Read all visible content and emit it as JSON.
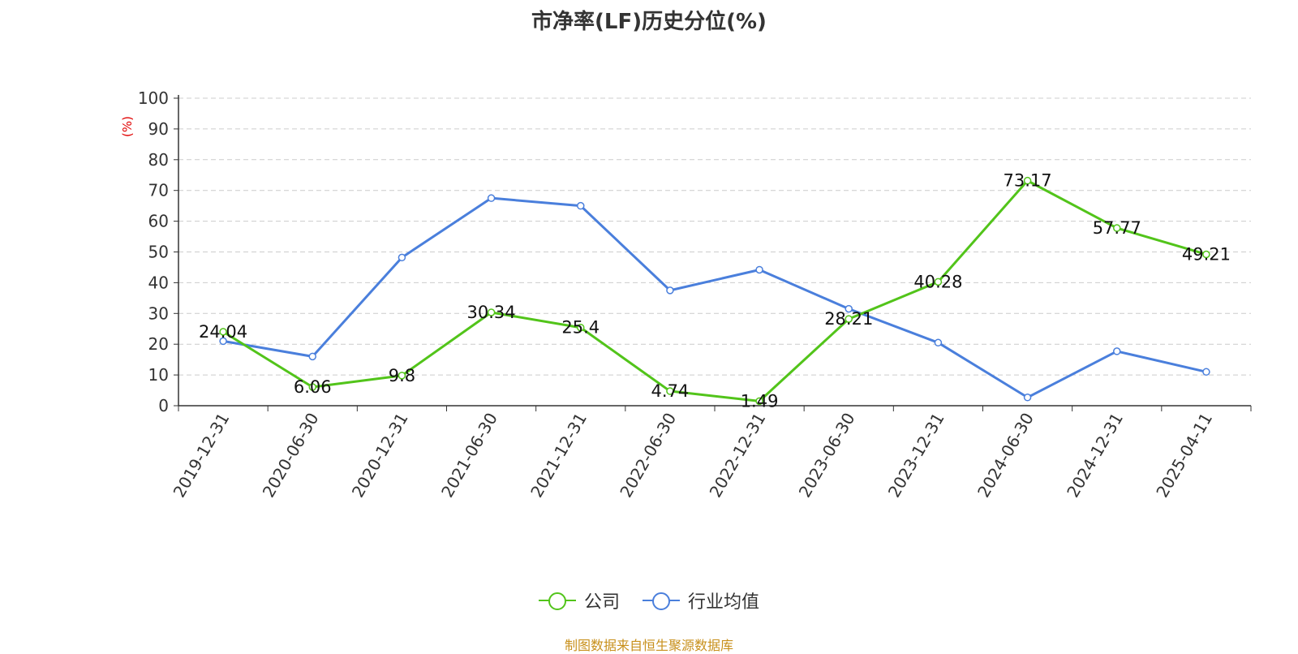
{
  "chart_data": {
    "type": "line",
    "title": "市净率(LF)历史分位(%)",
    "ylabel": "(%)",
    "ylim": [
      0,
      100
    ],
    "yticks": [
      0,
      10,
      20,
      30,
      40,
      50,
      60,
      70,
      80,
      90,
      100
    ],
    "grid": true,
    "legend_position": "bottom",
    "categories": [
      "2019-12-31",
      "2020-06-30",
      "2020-12-31",
      "2021-06-30",
      "2021-12-31",
      "2022-06-30",
      "2022-12-31",
      "2023-06-30",
      "2023-12-31",
      "2024-06-30",
      "2024-12-31",
      "2025-04-11"
    ],
    "series": [
      {
        "name": "公司",
        "color": "#52c41a",
        "show_labels": true,
        "values": [
          24.04,
          6.06,
          9.8,
          30.34,
          25.4,
          4.74,
          1.49,
          28.21,
          40.28,
          73.17,
          57.77,
          49.21
        ]
      },
      {
        "name": "行业均值",
        "color": "#4a7fdc",
        "show_labels": false,
        "values": [
          21.0,
          16.0,
          48.2,
          67.5,
          65.0,
          37.5,
          44.2,
          31.5,
          20.5,
          2.7,
          17.7,
          11.0
        ]
      }
    ]
  },
  "source_text": "制图数据来自恒生聚源数据库"
}
